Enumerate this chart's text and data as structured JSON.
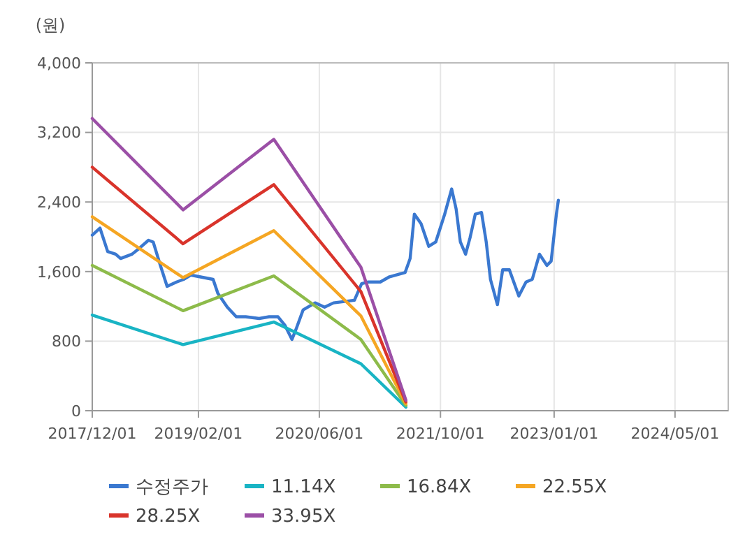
{
  "chart_data": {
    "type": "line",
    "ylabel": "(원)",
    "xlim": [
      "2017-12-01",
      "2024-12-01"
    ],
    "ylim": [
      0,
      4000
    ],
    "xticks": [
      {
        "value": "2017-12-01",
        "label": "2017/12/01"
      },
      {
        "value": "2019-02-01",
        "label": "2019/02/01"
      },
      {
        "value": "2020-06-01",
        "label": "2020/06/01"
      },
      {
        "value": "2021-10-01",
        "label": "2021/10/01"
      },
      {
        "value": "2023-01-01",
        "label": "2023/01/01"
      },
      {
        "value": "2024-05-01",
        "label": "2024/05/01"
      }
    ],
    "yticks": [
      0,
      800,
      {
        "value": 1600,
        "label": "1,600"
      },
      {
        "value": 2400,
        "label": "2,400"
      },
      {
        "value": 3200,
        "label": "3,200"
      },
      {
        "value": 4000,
        "label": "4,000"
      }
    ],
    "grid": true,
    "legend": "bottom",
    "marker": "none",
    "line_style": "solid",
    "series": [
      {
        "name": "수정주가",
        "color": "#3a78d0",
        "x": [
          "2017-12-01",
          "2018-01-01",
          "2018-02-01",
          "2018-03-05",
          "2018-03-25",
          "2018-05-10",
          "2018-06-05",
          "2018-07-15",
          "2018-08-03",
          "2018-09-01",
          "2018-09-28",
          "2018-11-05",
          "2018-12-03",
          "2019-01-01",
          "2019-02-06",
          "2019-04-01",
          "2019-04-20",
          "2019-05-28",
          "2019-07-03",
          "2019-08-10",
          "2019-10-03",
          "2019-11-12",
          "2019-12-18",
          "2020-01-15",
          "2020-02-12",
          "2020-03-01",
          "2020-03-28",
          "2020-05-15",
          "2020-06-22",
          "2020-07-28",
          "2020-10-20",
          "2020-11-18",
          "2020-12-15",
          "2021-02-01",
          "2021-03-10",
          "2021-05-12",
          "2021-06-01",
          "2021-06-18",
          "2021-07-15",
          "2021-08-15",
          "2021-09-12",
          "2021-10-18",
          "2021-11-15",
          "2021-12-03",
          "2021-12-20",
          "2022-01-10",
          "2022-01-28",
          "2022-02-18",
          "2022-03-15",
          "2022-04-03",
          "2022-04-20",
          "2022-05-18",
          "2022-06-08",
          "2022-07-05",
          "2022-08-12",
          "2022-09-10",
          "2022-10-05",
          "2022-11-03",
          "2022-12-03",
          "2022-12-20",
          "2023-01-10",
          "2023-01-18"
        ],
        "values": [
          2020,
          2100,
          1830,
          1800,
          1750,
          1800,
          1860,
          1960,
          1940,
          1670,
          1430,
          1480,
          1510,
          1560,
          1540,
          1510,
          1350,
          1190,
          1080,
          1080,
          1060,
          1080,
          1080,
          980,
          820,
          950,
          1160,
          1240,
          1190,
          1240,
          1270,
          1460,
          1480,
          1480,
          1540,
          1590,
          1750,
          2260,
          2150,
          1890,
          1940,
          2260,
          2550,
          2320,
          1940,
          1800,
          1990,
          2260,
          2280,
          1940,
          1510,
          1220,
          1620,
          1620,
          1320,
          1480,
          1510,
          1800,
          1670,
          1720,
          2260,
          2420
        ]
      },
      {
        "name": "11.14X",
        "color": "#19b4c4",
        "x": [
          "2017-12-01",
          "2018-12-01",
          "2019-12-01",
          "2020-11-15",
          "2021-05-15"
        ],
        "values": [
          1100,
          760,
          1020,
          540,
          40
        ]
      },
      {
        "name": "16.84X",
        "color": "#8dbb4a",
        "x": [
          "2017-12-01",
          "2018-12-01",
          "2019-12-01",
          "2020-11-15",
          "2021-05-15"
        ],
        "values": [
          1670,
          1150,
          1550,
          820,
          60
        ]
      },
      {
        "name": "22.55X",
        "color": "#f5a623",
        "x": [
          "2017-12-01",
          "2018-12-01",
          "2019-12-01",
          "2020-11-15",
          "2021-05-15"
        ],
        "values": [
          2230,
          1530,
          2070,
          1090,
          80
        ]
      },
      {
        "name": "28.25X",
        "color": "#d9342b",
        "x": [
          "2017-12-01",
          "2018-12-01",
          "2019-12-01",
          "2020-11-15",
          "2021-05-15"
        ],
        "values": [
          2800,
          1920,
          2600,
          1370,
          100
        ]
      },
      {
        "name": "33.95X",
        "color": "#9b4fa6",
        "x": [
          "2017-12-01",
          "2018-12-01",
          "2019-12-01",
          "2020-11-15",
          "2021-05-15"
        ],
        "values": [
          3360,
          2310,
          3120,
          1650,
          120
        ]
      }
    ]
  }
}
